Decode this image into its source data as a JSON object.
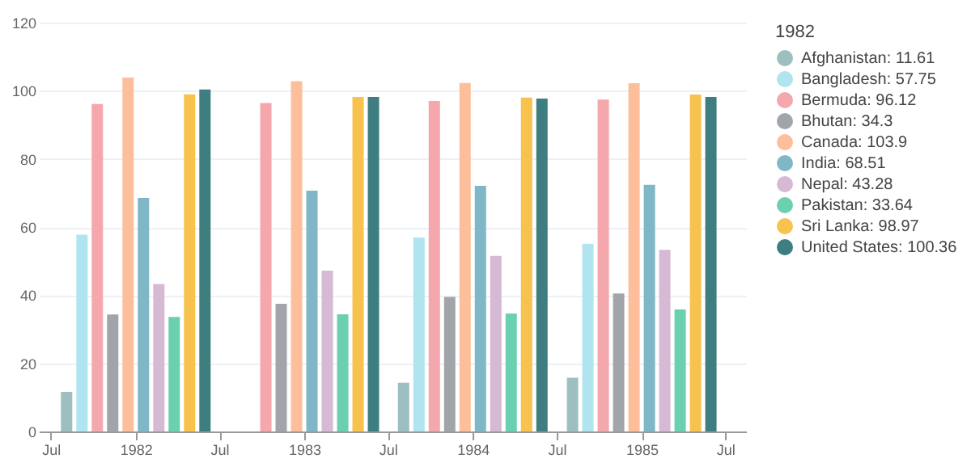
{
  "chart_data": {
    "type": "bar",
    "legend_title": "1982",
    "x": [
      "1982",
      "1983",
      "1984",
      "1985"
    ],
    "series": [
      {
        "name": "Afghanistan: 11.61",
        "color": "#9dbfc0",
        "values": [
          11.61,
          null,
          14.3,
          15.8
        ]
      },
      {
        "name": "Bangladesh: 57.75",
        "color": "#b0e4ee",
        "values": [
          57.75,
          null,
          56.9,
          55.1
        ]
      },
      {
        "name": "Bermuda: 96.12",
        "color": "#f4a8ad",
        "values": [
          96.12,
          96.4,
          97.0,
          97.4
        ]
      },
      {
        "name": "Bhutan: 34.3",
        "color": "#a1a4a9",
        "values": [
          34.3,
          37.5,
          39.5,
          40.5
        ]
      },
      {
        "name": "Canada: 103.9",
        "color": "#fdbf9b",
        "values": [
          103.9,
          102.8,
          102.3,
          102.2
        ]
      },
      {
        "name": "India: 68.51",
        "color": "#80b7c6",
        "values": [
          68.51,
          70.7,
          72.1,
          72.4
        ]
      },
      {
        "name": "Nepal: 43.28",
        "color": "#d6b9d3",
        "values": [
          43.28,
          47.2,
          51.5,
          53.3
        ]
      },
      {
        "name": "Pakistan: 33.64",
        "color": "#6ad0b0",
        "values": [
          33.64,
          34.4,
          34.6,
          35.8
        ]
      },
      {
        "name": "Sri Lanka: 98.97",
        "color": "#f8c24f",
        "values": [
          98.97,
          98.2,
          98.0,
          98.9
        ]
      },
      {
        "name": "United States: 100.36",
        "color": "#3f7e80",
        "values": [
          100.36,
          98.2,
          97.7,
          98.2
        ]
      }
    ],
    "xlim": [
      "1981-06-05",
      "1985-08-15"
    ],
    "xticks": [
      {
        "value": "1981-07",
        "label": "Jul"
      },
      {
        "value": "1982",
        "label": "1982"
      },
      {
        "value": "1982-07",
        "label": "Jul"
      },
      {
        "value": "1983",
        "label": "1983"
      },
      {
        "value": "1983-07",
        "label": "Jul"
      },
      {
        "value": "1984",
        "label": "1984"
      },
      {
        "value": "1984-07",
        "label": "Jul"
      },
      {
        "value": "1985",
        "label": "1985"
      },
      {
        "value": "1985-07",
        "label": "Jul"
      }
    ],
    "ylim": [
      0,
      120
    ],
    "yticks": [
      0,
      20,
      40,
      60,
      80,
      100,
      120
    ],
    "grid": "y",
    "legend": "right"
  }
}
